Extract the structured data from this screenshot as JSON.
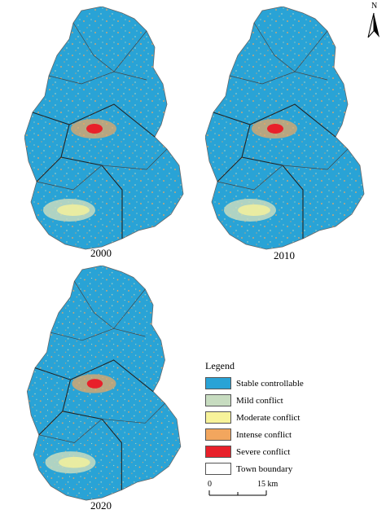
{
  "maps": [
    {
      "year": "2000"
    },
    {
      "year": "2010"
    },
    {
      "year": "2020"
    }
  ],
  "north_arrow": {
    "letter": "N"
  },
  "legend": {
    "title": "Legend",
    "items": [
      {
        "label": "Stable controllable",
        "color": "#29a3d6"
      },
      {
        "label": "Mild conflict",
        "color": "#c7dcc0"
      },
      {
        "label": "Moderate conflict",
        "color": "#f7f39a"
      },
      {
        "label": "Intense conflict",
        "color": "#f2a65e"
      },
      {
        "label": "Severe conflict",
        "color": "#e8202a"
      },
      {
        "label": "Town boundary",
        "color": "#ffffff"
      }
    ]
  },
  "scale_bar": {
    "zero": "0",
    "max": "15 km"
  }
}
